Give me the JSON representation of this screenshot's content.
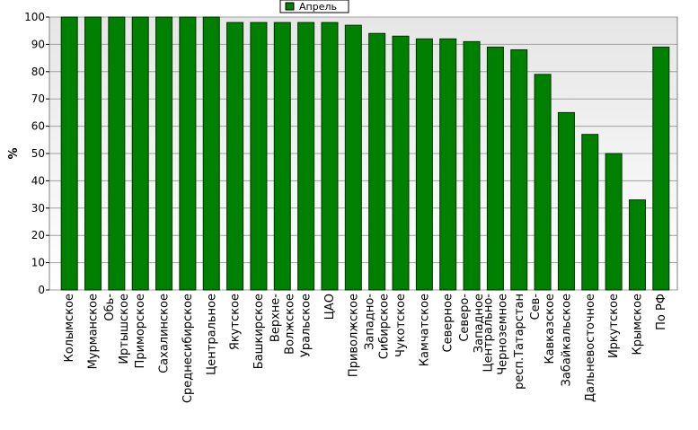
{
  "chart_data": {
    "type": "bar",
    "legend": "Апрель",
    "ylabel": "%",
    "color": "#008000",
    "categories": [
      "Колымское",
      "Мурманское",
      "Обь-Иртышское",
      "Приморское",
      "Сахалинское",
      "Среднесибирское",
      "Центральное",
      "Якутское",
      "Башкирское",
      "Верхне-Волжское",
      "Уральское",
      "ЦАО",
      "Приволжское",
      "Западно-Сибирское",
      "Чукотское",
      "Камчатское",
      "Северное",
      "Северо-Западное",
      "Центрально-Черноземное",
      "респ.Татарстан",
      "Сев-Кавказское",
      "Забайкальское",
      "Дальневосточное",
      "Иркутское",
      "Крымское",
      "По РФ"
    ],
    "values": [
      100,
      100,
      100,
      100,
      100,
      100,
      100,
      98,
      98,
      98,
      98,
      98,
      97,
      94,
      93,
      92,
      92,
      91,
      89,
      88,
      79,
      65,
      57,
      50,
      33,
      89
    ],
    "ylim": [
      0,
      100
    ],
    "yticks": [
      0,
      10,
      20,
      30,
      40,
      50,
      60,
      70,
      80,
      90,
      100
    ],
    "grid": true
  }
}
